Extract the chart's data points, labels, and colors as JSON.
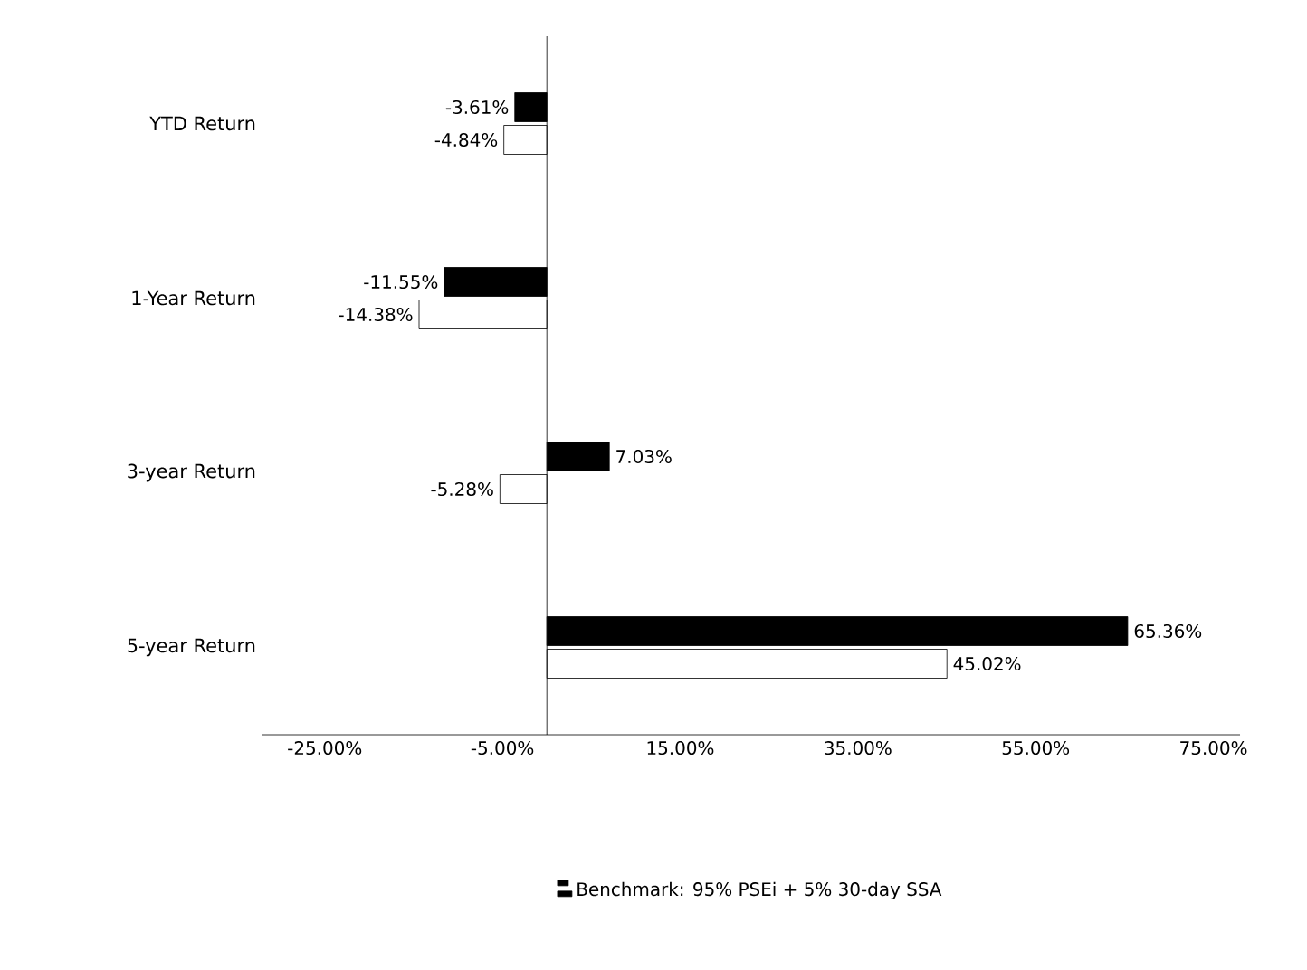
{
  "chart_data": {
    "type": "bar",
    "orientation": "horizontal",
    "categories": [
      "YTD Return",
      "1-Year Return",
      "3-year Return",
      "5-year Return"
    ],
    "series": [
      {
        "name": "Benchmark: 95% PSEi + 5% 30-day SSA",
        "color": "#000000",
        "values": [
          -3.61,
          -11.55,
          7.03,
          65.36
        ],
        "value_labels": [
          "-3.61%",
          "-11.55%",
          "7.03%",
          "65.36%"
        ]
      },
      {
        "color": "#ffffff",
        "values": [
          -4.84,
          -14.38,
          -5.28,
          45.02
        ],
        "value_labels": [
          "-4.84%",
          "-14.38%",
          "-5.28%",
          "45.02%"
        ]
      }
    ],
    "xlim": [
      -32,
      78
    ],
    "xticks": [
      {
        "value": -25,
        "label": "-25.00%"
      },
      {
        "value": -5,
        "label": "-5.00%"
      },
      {
        "value": 15,
        "label": "15.00%"
      },
      {
        "value": 35,
        "label": "35.00%"
      },
      {
        "value": 55,
        "label": "55.00%"
      },
      {
        "value": 75,
        "label": "75.00%"
      }
    ],
    "grid": false,
    "legend": "bottom"
  }
}
